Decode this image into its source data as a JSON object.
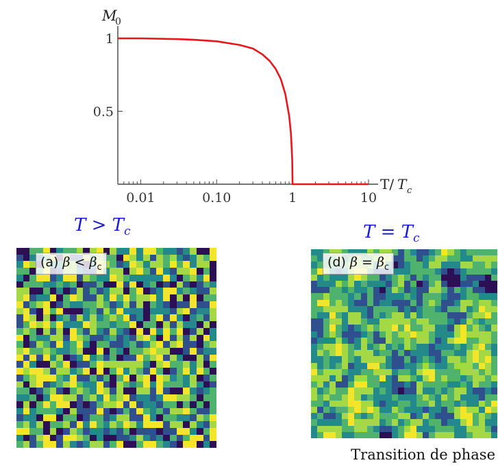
{
  "chart_data": {
    "type": "line",
    "x_scale": "log",
    "xlabel_prefix": "T/",
    "xlabel_var": "T",
    "xlabel_sub": "c",
    "ylabel_var": "M",
    "ylabel_sub": "0",
    "x_ticks": [
      "0.01",
      "0.10",
      "1",
      "10"
    ],
    "y_ticks": [
      "0.5",
      "1"
    ],
    "xlim": [
      0.005,
      10
    ],
    "ylim": [
      0,
      1
    ],
    "grid": false,
    "line_color": "#e8151c",
    "series": [
      {
        "x": [
          0.005,
          0.01,
          0.03,
          0.05,
          0.1,
          0.2,
          0.3,
          0.4,
          0.5,
          0.6,
          0.7,
          0.8,
          0.9,
          0.95,
          0.99,
          1.0,
          2,
          5,
          10
        ],
        "y": [
          1.0,
          1.0,
          0.995,
          0.99,
          0.98,
          0.955,
          0.93,
          0.89,
          0.845,
          0.79,
          0.72,
          0.62,
          0.47,
          0.35,
          0.17,
          0.0,
          0.0,
          0.0,
          0.0
        ]
      }
    ]
  },
  "panels": {
    "a": {
      "heading_var": "T",
      "heading_op": ">",
      "heading_rhs_var": "T",
      "heading_rhs_sub": "c",
      "label_prefix": "(a)",
      "label_lhs": "β",
      "label_op": "<",
      "label_rhs": "β",
      "label_rhs_sub": "c"
    },
    "d": {
      "heading_var": "T",
      "heading_op": "=",
      "heading_rhs_var": "T",
      "heading_rhs_sub": "c",
      "label_prefix": "(d)",
      "label_lhs": "β",
      "label_op": "=",
      "label_rhs": "β",
      "label_rhs_sub": "c"
    }
  },
  "lattice_colors": [
    "#2d0f55",
    "#2f4f8d",
    "#23898a",
    "#4fb36d",
    "#a4d845",
    "#f3e52a"
  ],
  "caption": "Transition de phase"
}
